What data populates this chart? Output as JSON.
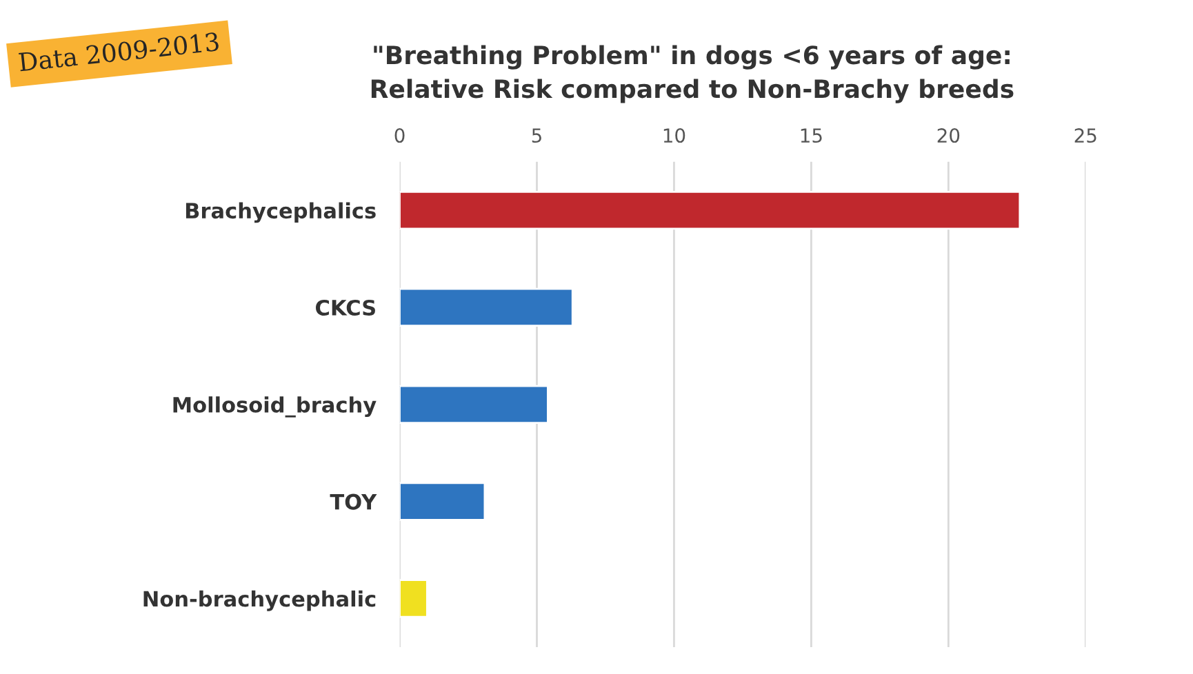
{
  "chart_data": {
    "type": "bar",
    "orientation": "horizontal",
    "title": "\"Breathing Problem\" in dogs <6 years of age:\nRelative Risk compared to Non-Brachy breeds",
    "categories": [
      "Brachycephalics",
      "CKCS",
      "Mollosoid_brachy",
      "TOY",
      "Non-brachycephalic"
    ],
    "values": [
      22.6,
      6.3,
      5.4,
      3.1,
      1.0
    ],
    "colors": [
      "#c0282d",
      "#2e75c0",
      "#2e75c0",
      "#2e75c0",
      "#f0e020"
    ],
    "xlim": [
      0,
      25
    ],
    "xticks": [
      0,
      5,
      10,
      15,
      20,
      25
    ],
    "grid": "x",
    "legend": false,
    "annotations": [
      "Data 2009-2013"
    ]
  }
}
